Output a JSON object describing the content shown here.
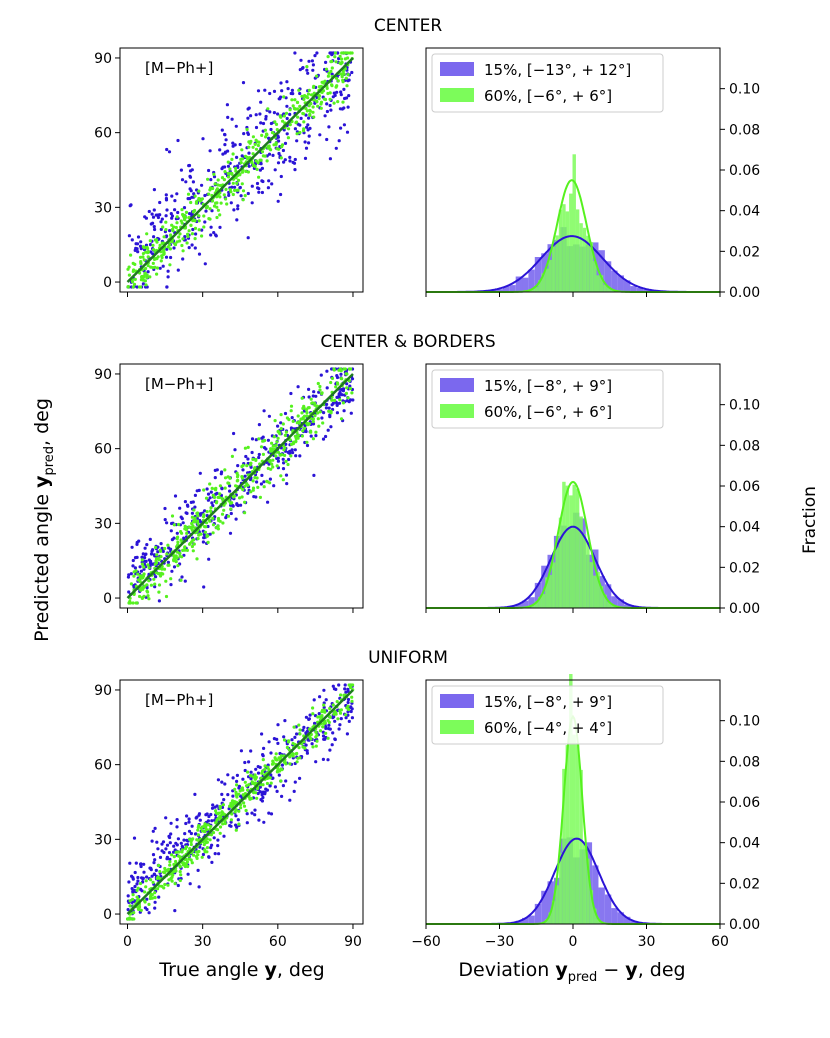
{
  "figure": {
    "ylabel_left_main": "Predicted angle ",
    "ylabel_left_bold": "y",
    "ylabel_left_sub": "pred",
    "ylabel_left_unit": ", deg",
    "ylabel_right": "Fraction",
    "xlabel_left_main": "True angle ",
    "xlabel_left_bold": "y",
    "xlabel_left_unit": ", deg",
    "xlabel_right_main": "Deviation ",
    "xlabel_right_bold1": "y",
    "xlabel_right_sub": "pred",
    "xlabel_right_minus": " − ",
    "xlabel_right_bold2": "y",
    "xlabel_right_unit": ", deg"
  },
  "colors": {
    "blue": "#2b14d6",
    "green": "#56f11f",
    "blue_hist": "#7b68ee",
    "green_hist": "#7cfc5a",
    "fit_line": "#1f7a1f"
  },
  "chart_data": [
    {
      "type": "scatter",
      "panel": "CENTER",
      "title": "CENTER",
      "annotation": "[M−Ph+]",
      "xlim": [
        -3,
        94
      ],
      "ylim": [
        -4,
        94
      ],
      "xticks": [
        0,
        30,
        60,
        90
      ],
      "yticks": [
        0,
        30,
        60,
        90
      ],
      "series": [
        {
          "color": "blue",
          "points": "scatter, approx. 500 points around y=x with large spread (~15°)",
          "spread": 15
        },
        {
          "color": "green",
          "points": "scatter, approx. 500 points around y=x with spread ~6°",
          "spread": 6
        }
      ],
      "fit_line": {
        "x": [
          0,
          90
        ],
        "y": [
          0,
          90
        ]
      }
    },
    {
      "type": "bar",
      "panel": "CENTER",
      "xlim": [
        -60,
        60
      ],
      "ylim": [
        0,
        0.12
      ],
      "yticks": [
        0.0,
        0.02,
        0.04,
        0.06,
        0.08,
        0.1
      ],
      "ytick_labels": [
        "0.00",
        "0.02",
        "0.04",
        "0.06",
        "0.08",
        "0.10"
      ],
      "legend": [
        "15%, [−13°, + 12°]",
        "60%, [−6°, + 6°]"
      ],
      "series": [
        {
          "name": "15%, [−13°, + 12°]",
          "color": "blue",
          "fit_mu": -0.5,
          "fit_sigma": 12.5,
          "fit_peak": 0.0275
        },
        {
          "name": "60%, [−6°, + 6°]",
          "color": "green",
          "fit_mu": -0.5,
          "fit_sigma": 6,
          "fit_peak": 0.055
        }
      ]
    },
    {
      "type": "scatter",
      "panel": "CENTER & BORDERS",
      "title": "CENTER & BORDERS",
      "annotation": "[M−Ph+]",
      "xlim": [
        -3,
        94
      ],
      "ylim": [
        -4,
        94
      ],
      "xticks": [
        0,
        30,
        60,
        90
      ],
      "yticks": [
        0,
        30,
        60,
        90
      ],
      "series": [
        {
          "color": "blue",
          "spread": 9
        },
        {
          "color": "green",
          "spread": 6
        }
      ],
      "fit_line": {
        "x": [
          0,
          90
        ],
        "y": [
          0,
          90
        ]
      }
    },
    {
      "type": "bar",
      "panel": "CENTER & BORDERS",
      "xlim": [
        -60,
        60
      ],
      "ylim": [
        0,
        0.12
      ],
      "yticks": [
        0.0,
        0.02,
        0.04,
        0.06,
        0.08,
        0.1
      ],
      "ytick_labels": [
        "0.00",
        "0.02",
        "0.04",
        "0.06",
        "0.08",
        "0.10"
      ],
      "legend": [
        "15%, [−8°, + 9°]",
        "60%, [−6°, + 6°]"
      ],
      "series": [
        {
          "name": "15%, [−8°, + 9°]",
          "color": "blue",
          "fit_mu": 0,
          "fit_sigma": 9,
          "fit_peak": 0.04
        },
        {
          "name": "60%, [−6°, + 6°]",
          "color": "green",
          "fit_mu": 0,
          "fit_sigma": 6,
          "fit_peak": 0.062
        }
      ]
    },
    {
      "type": "scatter",
      "panel": "UNIFORM",
      "title": "UNIFORM",
      "annotation": "[M−Ph+]",
      "xlim": [
        -3,
        94
      ],
      "ylim": [
        -4,
        94
      ],
      "xticks": [
        0,
        30,
        60,
        90
      ],
      "yticks": [
        0,
        30,
        60,
        90
      ],
      "xtick_labels": [
        "0",
        "30",
        "60",
        "90"
      ],
      "series": [
        {
          "color": "blue",
          "spread": 9
        },
        {
          "color": "green",
          "spread": 4
        }
      ],
      "fit_line": {
        "x": [
          0,
          90
        ],
        "y": [
          0,
          90
        ]
      }
    },
    {
      "type": "bar",
      "panel": "UNIFORM",
      "xlim": [
        -60,
        60
      ],
      "ylim": [
        0,
        0.12
      ],
      "xticks": [
        -60,
        -30,
        0,
        30,
        60
      ],
      "xtick_labels": [
        "−60",
        "−30",
        "0",
        "30",
        "60"
      ],
      "yticks": [
        0.0,
        0.02,
        0.04,
        0.06,
        0.08,
        0.1
      ],
      "ytick_labels": [
        "0.00",
        "0.02",
        "0.04",
        "0.06",
        "0.08",
        "0.10"
      ],
      "legend": [
        "15%, [−8°, + 9°]",
        "60%, [−4°, + 4°]"
      ],
      "series": [
        {
          "name": "15%, [−8°, + 9°]",
          "color": "blue",
          "fit_mu": 1.5,
          "fit_sigma": 9,
          "fit_peak": 0.042
        },
        {
          "name": "60%, [−4°, + 4°]",
          "color": "green",
          "fit_mu": 0,
          "fit_sigma": 3.8,
          "fit_peak": 0.102
        }
      ]
    }
  ]
}
